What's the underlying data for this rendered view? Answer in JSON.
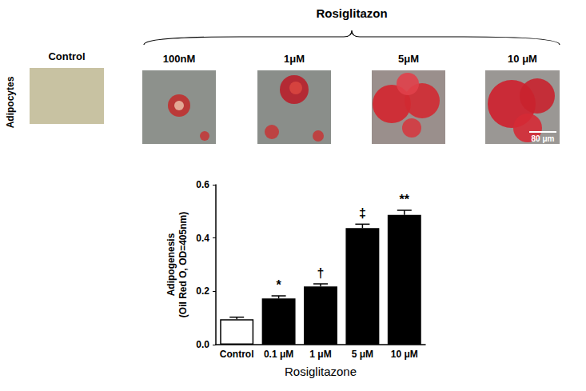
{
  "panel": {
    "title": "Rosiglitazon",
    "row_label": "Adipocytes",
    "images": [
      "Control",
      "100nM",
      "1μM",
      "5μM",
      "10 μM"
    ],
    "scale_bar": "80 μm"
  },
  "chart_data": {
    "type": "bar",
    "categories": [
      "Control",
      "0.1 μM",
      "1 μM",
      "5 μM",
      "10 μM"
    ],
    "values": [
      0.095,
      0.173,
      0.218,
      0.437,
      0.487
    ],
    "errors": [
      0.008,
      0.01,
      0.01,
      0.015,
      0.017
    ],
    "significance": [
      null,
      "*",
      "†",
      "‡",
      "**"
    ],
    "colors": [
      "#ffffff",
      "#000000",
      "#000000",
      "#000000",
      "#000000"
    ],
    "x_label": "Rosiglitazone",
    "y_label": "Adipogenesis\n(Oil Red O, OD=405nm)",
    "ylim": [
      0,
      0.6
    ],
    "yticks": [
      {
        "value": 0,
        "label": "0.0"
      },
      0.2,
      0.4,
      0.6
    ],
    "grid": false
  }
}
